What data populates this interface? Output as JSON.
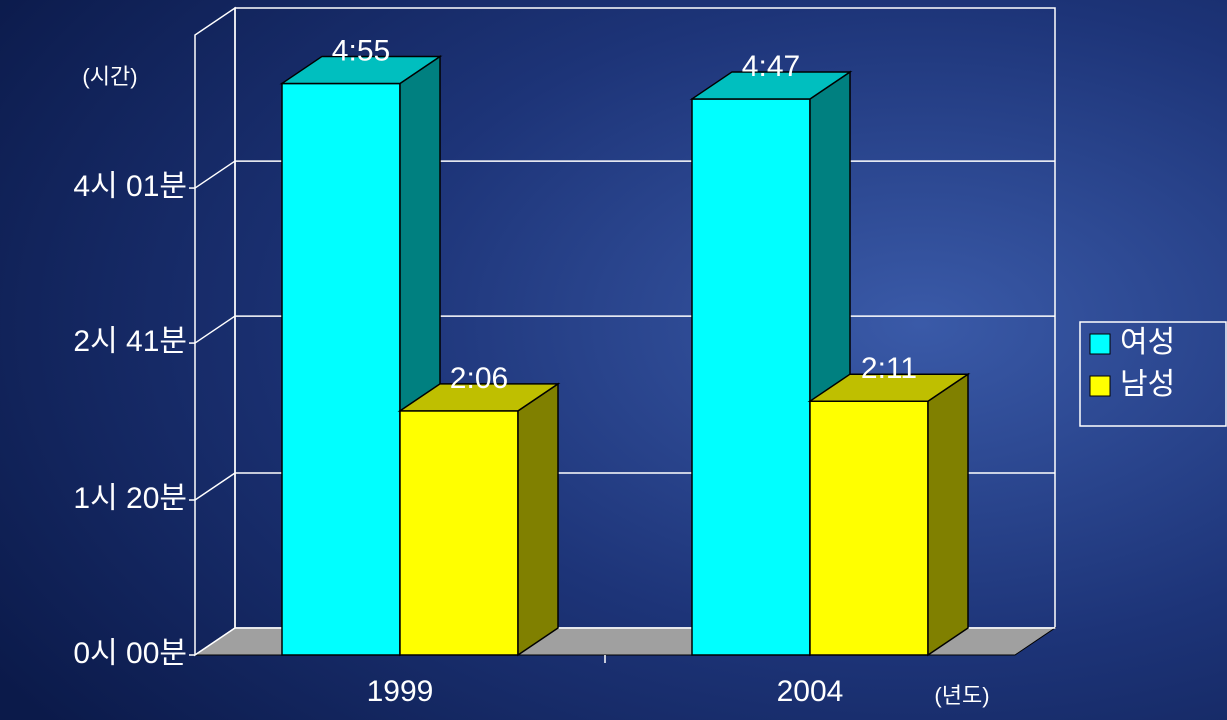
{
  "chart_data": {
    "type": "bar3d",
    "categories": [
      "1999",
      "2004"
    ],
    "series": [
      {
        "name": "여성",
        "color": "#00ffff",
        "values": [
          295,
          287
        ],
        "value_labels": [
          "4:55",
          "4:47"
        ]
      },
      {
        "name": "남성",
        "color": "#ffff00",
        "values": [
          126,
          131
        ],
        "value_labels": [
          "2:06",
          "2:11"
        ]
      }
    ],
    "y_label": "(시간)",
    "x_label": "(년도)",
    "ylim": [
      0,
      320
    ],
    "yticks": [
      {
        "value": 0,
        "label": "0시 00분"
      },
      {
        "value": 80,
        "label": "1시 20분"
      },
      {
        "value": 161,
        "label": "2시 41분"
      },
      {
        "value": 241,
        "label": "4시 01분"
      }
    ],
    "grid": true,
    "legend": "right"
  }
}
